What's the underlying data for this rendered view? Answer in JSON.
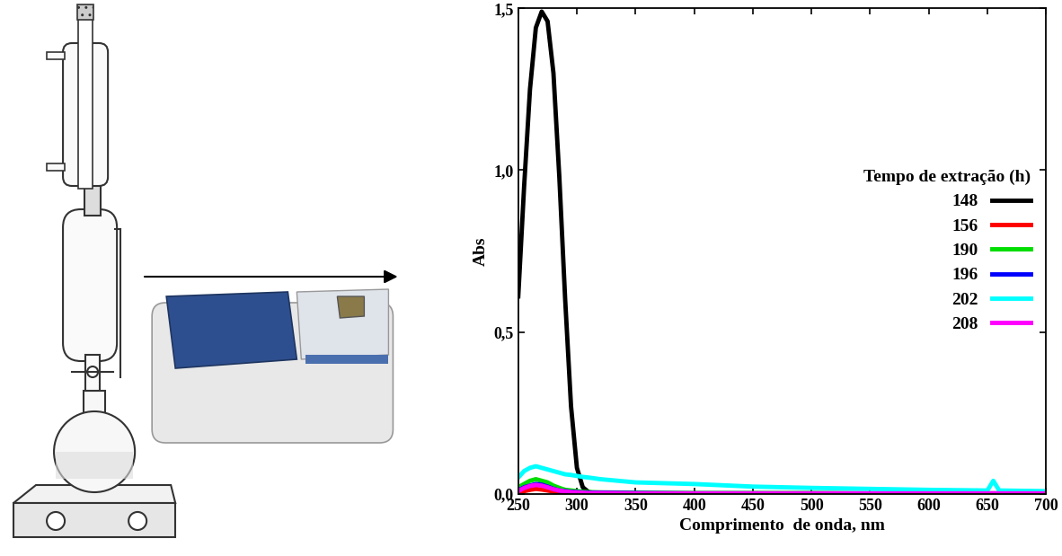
{
  "chart_data": {
    "type": "line",
    "xlabel": "Comprimento  de onda, nm",
    "ylabel": "Abs",
    "legend_title": "Tempo de extração (h)",
    "legend": "center right",
    "xlim": [
      250,
      700
    ],
    "xticks": [
      250,
      300,
      350,
      400,
      450,
      500,
      550,
      600,
      650,
      700
    ],
    "ylim": [
      0,
      1.5
    ],
    "yticks": [
      {
        "value": 0,
        "label": "0,0"
      },
      {
        "value": 0.5,
        "label": "0,5"
      },
      {
        "value": 1.0,
        "label": "1,0"
      },
      {
        "value": 1.5,
        "label": "1,5"
      }
    ],
    "x": [
      250,
      255,
      260,
      265,
      270,
      275,
      280,
      285,
      290,
      295,
      300,
      305,
      310,
      320,
      350,
      400,
      450,
      500,
      550,
      600,
      650,
      655,
      660,
      700
    ],
    "series": [
      {
        "name": "148",
        "color": "#000000",
        "values": [
          0.61,
          0.95,
          1.25,
          1.44,
          1.49,
          1.46,
          1.3,
          0.98,
          0.6,
          0.27,
          0.08,
          0.02,
          0.005,
          0,
          0,
          0,
          0,
          0,
          0,
          0,
          0,
          0,
          0,
          0
        ]
      },
      {
        "name": "156",
        "color": "#ff0000",
        "values": [
          0.003,
          0.008,
          0.012,
          0.015,
          0.013,
          0.01,
          0.007,
          0.005,
          0.003,
          0.002,
          0.002,
          0.001,
          0.001,
          0,
          0,
          0,
          0,
          0,
          0,
          0,
          0,
          0,
          0,
          0
        ]
      },
      {
        "name": "190",
        "color": "#00dd00",
        "values": [
          0.02,
          0.03,
          0.04,
          0.045,
          0.04,
          0.035,
          0.025,
          0.018,
          0.012,
          0.01,
          0.008,
          0.006,
          0.005,
          0.004,
          0.003,
          0.002,
          0.002,
          0.002,
          0.001,
          0.001,
          0.001,
          0.001,
          0.001,
          0.001
        ]
      },
      {
        "name": "196",
        "color": "#0000ff",
        "values": [
          0.01,
          0.02,
          0.025,
          0.03,
          0.028,
          0.022,
          0.015,
          0.01,
          0.008,
          0.006,
          0.005,
          0.004,
          0.003,
          0.003,
          0.002,
          0.001,
          0.001,
          0.001,
          0.001,
          0.001,
          0.001,
          0.001,
          0.001,
          0.001
        ]
      },
      {
        "name": "202",
        "color": "#00ffff",
        "values": [
          0.05,
          0.07,
          0.08,
          0.085,
          0.08,
          0.075,
          0.07,
          0.065,
          0.06,
          0.058,
          0.055,
          0.052,
          0.05,
          0.045,
          0.035,
          0.03,
          0.022,
          0.018,
          0.015,
          0.012,
          0.01,
          0.04,
          0.01,
          0.008
        ]
      },
      {
        "name": "208",
        "color": "#ff00ff",
        "values": [
          0.008,
          0.018,
          0.024,
          0.027,
          0.025,
          0.02,
          0.014,
          0.01,
          0.007,
          0.005,
          0.004,
          0.003,
          0.002,
          0.002,
          0.001,
          0.001,
          0.001,
          0.001,
          0.001,
          0.001,
          0.001,
          0.001,
          0.001,
          0.001
        ]
      }
    ]
  }
}
